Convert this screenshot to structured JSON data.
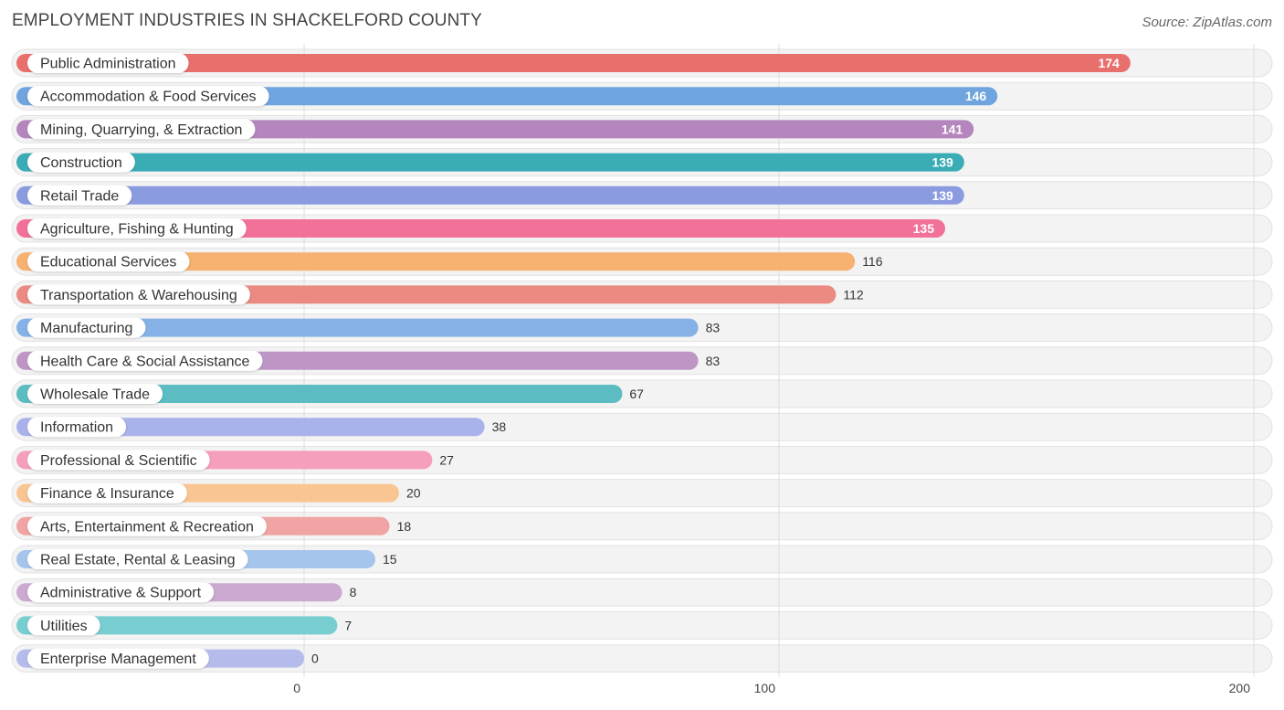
{
  "header": {
    "title": "EMPLOYMENT INDUSTRIES IN SHACKELFORD COUNTY",
    "source": "Source: ZipAtlas.com"
  },
  "chart_data": {
    "type": "bar",
    "orientation": "horizontal",
    "title": "EMPLOYMENT INDUSTRIES IN SHACKELFORD COUNTY",
    "xlabel": "",
    "ylabel": "",
    "xlim": [
      0,
      200
    ],
    "ticks": [
      0,
      100,
      200
    ],
    "tick_labels": [
      "0",
      "100",
      "200"
    ],
    "grid": true,
    "categories": [
      "Public Administration",
      "Accommodation & Food Services",
      "Mining, Quarrying, & Extraction",
      "Construction",
      "Retail Trade",
      "Agriculture, Fishing & Hunting",
      "Educational Services",
      "Transportation & Warehousing",
      "Manufacturing",
      "Health Care & Social Assistance",
      "Wholesale Trade",
      "Information",
      "Professional & Scientific",
      "Finance & Insurance",
      "Arts, Entertainment & Recreation",
      "Real Estate, Rental & Leasing",
      "Administrative & Support",
      "Utilities",
      "Enterprise Management"
    ],
    "values": [
      174,
      146,
      141,
      139,
      139,
      135,
      116,
      112,
      83,
      83,
      67,
      38,
      27,
      20,
      18,
      15,
      8,
      7,
      0
    ],
    "colors": [
      "#e8706c",
      "#6fa4df",
      "#b486bd",
      "#3aacb5",
      "#8b9be0",
      "#f27199",
      "#f7b170",
      "#ea8a82",
      "#86b1e6",
      "#bd96c6",
      "#5bbcc2",
      "#a9b2ea",
      "#f59fbd",
      "#f9c592",
      "#f0a4a3",
      "#a5c5ec",
      "#cba9d1",
      "#78cdd0",
      "#b5bcec"
    ]
  }
}
